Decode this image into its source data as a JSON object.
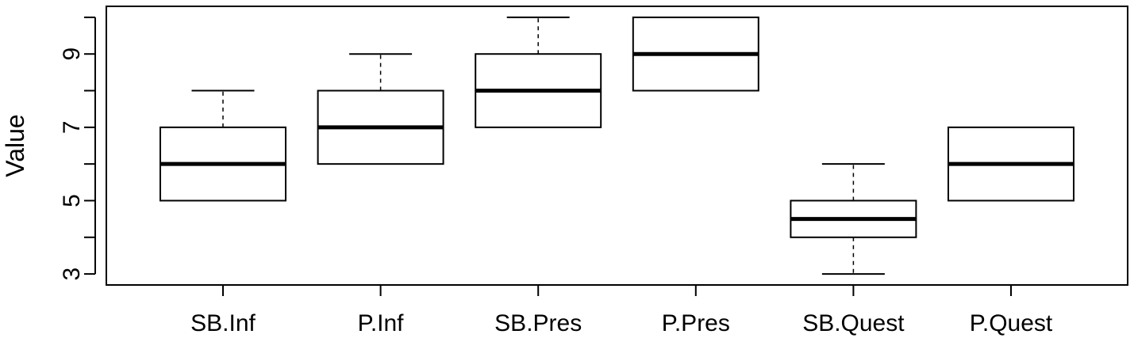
{
  "chart_data": {
    "type": "box",
    "title": "",
    "xlabel": "",
    "ylabel": "Value",
    "categories": [
      "SB.Inf",
      "P.Inf",
      "SB.Pres",
      "P.Pres",
      "SB.Quest",
      "P.Quest"
    ],
    "boxes": [
      {
        "name": "SB.Inf",
        "whisker_low": 5,
        "q1": 5,
        "median": 6,
        "q3": 7,
        "whisker_high": 8
      },
      {
        "name": "P.Inf",
        "whisker_low": 6,
        "q1": 6,
        "median": 7,
        "q3": 8,
        "whisker_high": 9
      },
      {
        "name": "SB.Pres",
        "whisker_low": 7,
        "q1": 7,
        "median": 8,
        "q3": 9,
        "whisker_high": 10
      },
      {
        "name": "P.Pres",
        "whisker_low": 8,
        "q1": 8,
        "median": 9,
        "q3": 10,
        "whisker_high": 10
      },
      {
        "name": "SB.Quest",
        "whisker_low": 3,
        "q1": 4,
        "median": 4.5,
        "q3": 5,
        "whisker_high": 6
      },
      {
        "name": "P.Quest",
        "whisker_low": 5,
        "q1": 5,
        "median": 6,
        "q3": 7,
        "whisker_high": 7
      }
    ],
    "ylim": [
      2.7,
      10.3
    ],
    "y_ticks": [
      3,
      4,
      5,
      6,
      7,
      8,
      9,
      10
    ],
    "y_tick_labels": [
      "3",
      "",
      "5",
      "",
      "7",
      "",
      "9",
      ""
    ],
    "grid": false,
    "legend": "none",
    "colors": {
      "box_fill": "#ffffff",
      "stroke": "#000000"
    }
  }
}
